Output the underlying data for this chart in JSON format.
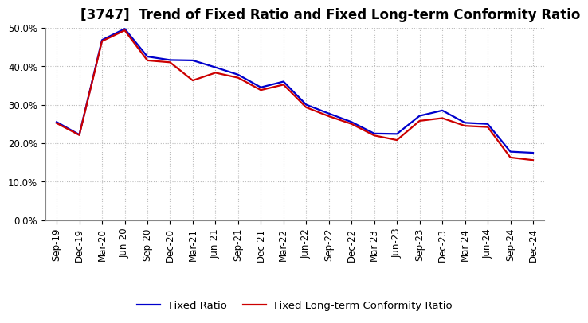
{
  "title": "[3747]  Trend of Fixed Ratio and Fixed Long-term Conformity Ratio",
  "x_labels": [
    "Sep-19",
    "Dec-19",
    "Mar-20",
    "Jun-20",
    "Sep-20",
    "Dec-20",
    "Mar-21",
    "Jun-21",
    "Sep-21",
    "Dec-21",
    "Mar-22",
    "Jun-22",
    "Sep-22",
    "Dec-22",
    "Mar-23",
    "Jun-23",
    "Sep-23",
    "Dec-23",
    "Mar-24",
    "Jun-24",
    "Sep-24",
    "Dec-24"
  ],
  "fixed_ratio": [
    0.255,
    0.222,
    0.468,
    0.497,
    0.425,
    0.416,
    0.415,
    0.397,
    0.378,
    0.345,
    0.36,
    0.3,
    0.277,
    0.255,
    0.225,
    0.224,
    0.271,
    0.285,
    0.253,
    0.25,
    0.178,
    0.175
  ],
  "fixed_lt_ratio": [
    0.252,
    0.221,
    0.465,
    0.493,
    0.415,
    0.41,
    0.363,
    0.383,
    0.37,
    0.338,
    0.352,
    0.293,
    0.27,
    0.25,
    0.22,
    0.208,
    0.258,
    0.265,
    0.245,
    0.242,
    0.163,
    0.156
  ],
  "fixed_ratio_color": "#0000cc",
  "fixed_lt_ratio_color": "#cc0000",
  "ylim_min": 0.0,
  "ylim_max": 0.5,
  "yticks": [
    0.0,
    0.1,
    0.2,
    0.3,
    0.4,
    0.5
  ],
  "background_color": "#ffffff",
  "grid_color": "#bbbbbb",
  "legend_fixed": "Fixed Ratio",
  "legend_lt": "Fixed Long-term Conformity Ratio",
  "title_fontsize": 12,
  "axis_fontsize": 8.5,
  "legend_fontsize": 9.5,
  "linewidth": 1.6
}
